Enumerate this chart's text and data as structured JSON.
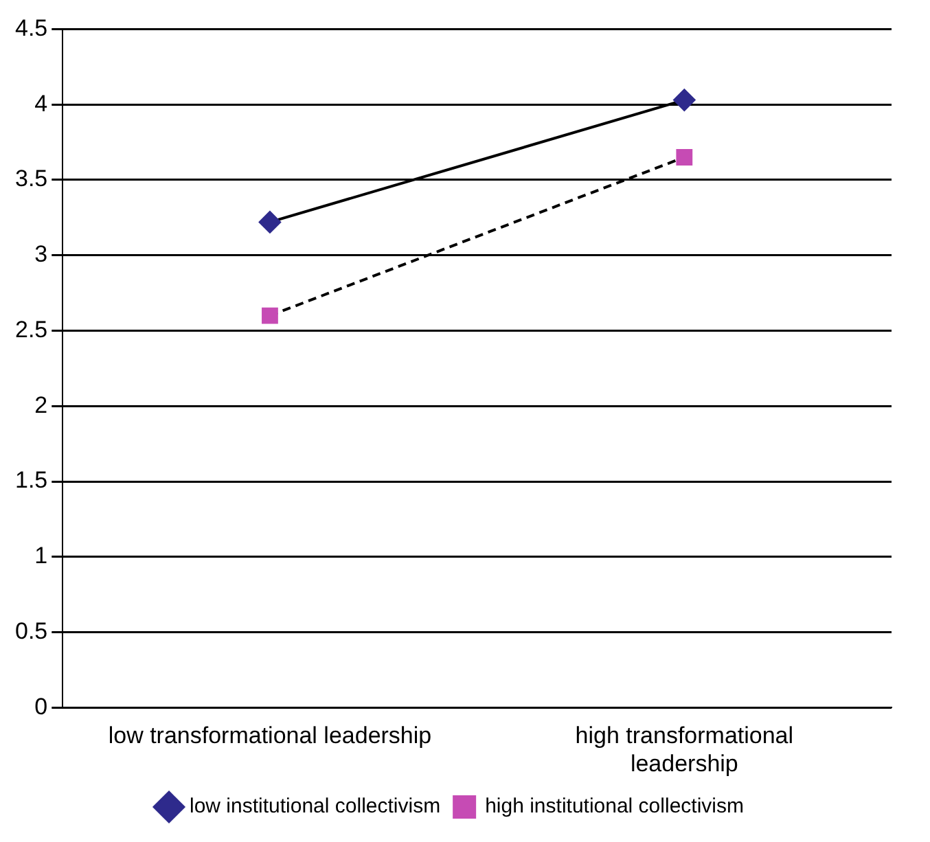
{
  "chart_data": {
    "type": "line",
    "categories": [
      "low transformational leadership",
      "high transformational leadership"
    ],
    "series": [
      {
        "name": "low institutional collectivism",
        "color": "#2e2a8c",
        "values": [
          3.22,
          4.03
        ],
        "marker": "diamond",
        "line_style": "solid"
      },
      {
        "name": "high institutional collectivism",
        "color": "#c64bb4",
        "values": [
          2.6,
          3.65
        ],
        "marker": "square",
        "line_style": "dashed"
      }
    ],
    "ylim": [
      0,
      4.5
    ],
    "yticks": [
      0,
      0.5,
      1,
      1.5,
      2,
      2.5,
      3,
      3.5,
      4,
      4.5
    ],
    "grid": "y",
    "legend": "bottom"
  }
}
